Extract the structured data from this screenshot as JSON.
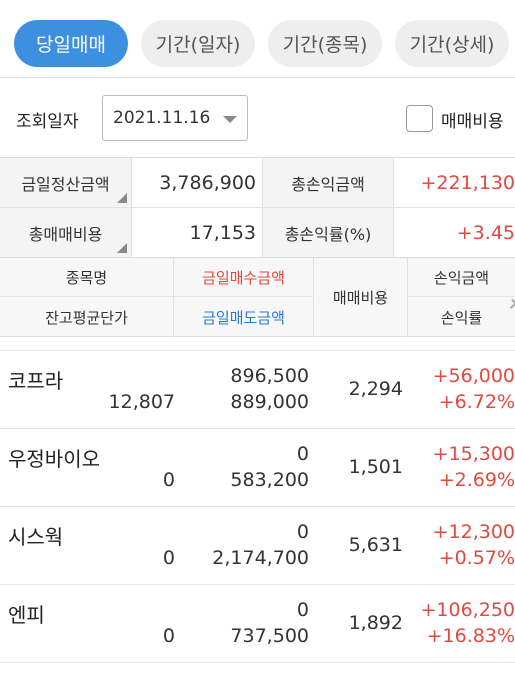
{
  "tabs": [
    {
      "label": "당일매매",
      "active": true
    },
    {
      "label": "기간(일자)",
      "active": false
    },
    {
      "label": "기간(종목)",
      "active": false
    },
    {
      "label": "기간(상세)",
      "active": false
    }
  ],
  "filter": {
    "label": "조회일자",
    "date": "2021.11.16",
    "checkbox_label": "매매비용",
    "checkbox_checked": false
  },
  "summary": {
    "today_settlement_label": "금일정산금액",
    "today_settlement_value": "3,786,900",
    "total_pl_label": "총손익금액",
    "total_pl_value": "+221,130",
    "total_fee_label": "총매매비용",
    "total_fee_value": "17,153",
    "total_pl_rate_label": "총손익률(%)",
    "total_pl_rate_value": "+3.45"
  },
  "table_header": {
    "name": "종목명",
    "avg_price": "잔고평균단가",
    "buy_amount": "금일매수금액",
    "sell_amount": "금일매도금액",
    "fee": "매매비용",
    "pl_amount": "손익금액",
    "pl_rate": "손익률"
  },
  "rows": [
    {
      "name": "코프라",
      "avg_price": "12,807",
      "buy": "896,500",
      "sell": "889,000",
      "fee": "2,294",
      "pl": "+56,000",
      "rate": "+6.72%"
    },
    {
      "name": "우정바이오",
      "avg_price": "0",
      "buy": "0",
      "sell": "583,200",
      "fee": "1,501",
      "pl": "+15,300",
      "rate": "+2.69%"
    },
    {
      "name": "시스웍",
      "avg_price": "0",
      "buy": "0",
      "sell": "2,174,700",
      "fee": "5,631",
      "pl": "+12,300",
      "rate": "+0.57%"
    },
    {
      "name": "엔피",
      "avg_price": "0",
      "buy": "0",
      "sell": "737,500",
      "fee": "1,892",
      "pl": "+106,250",
      "rate": "+16.83%"
    }
  ],
  "colors": {
    "accent": "#3d8fe0",
    "positive": "#e04a3f",
    "sell_header": "#2a7bd0"
  }
}
